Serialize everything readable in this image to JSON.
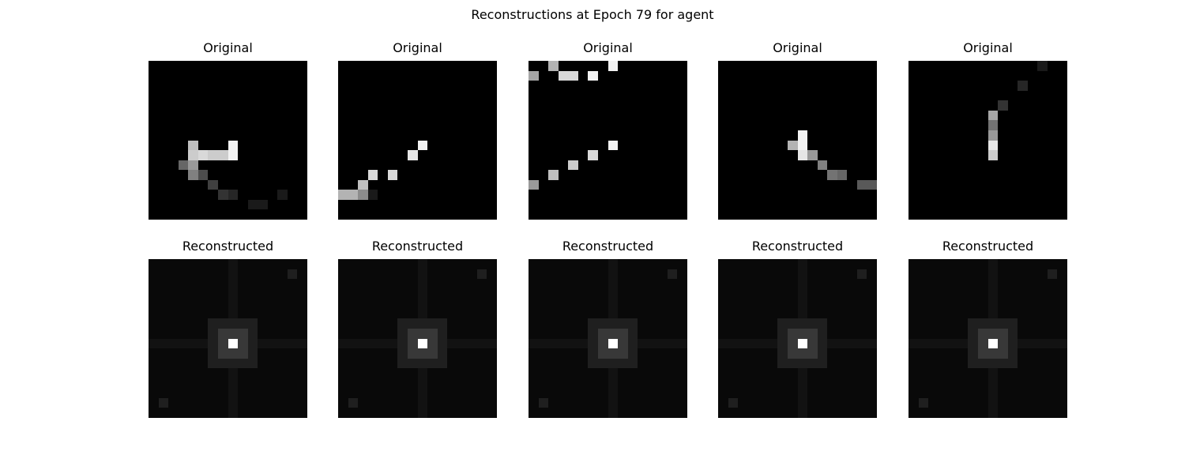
{
  "chart_data": {
    "type": "heatmap",
    "title": "Reconstructions at Epoch 79 for agent",
    "grid_size": 16,
    "value_range": [
      0,
      1
    ],
    "colormap": "gray",
    "rows": [
      {
        "label": "Original",
        "panels": [
          {
            "title": "Original",
            "cells": [
              [
                8,
                8,
                0.95
              ],
              [
                8,
                4,
                0.75
              ],
              [
                9,
                4,
                0.8
              ],
              [
                9,
                5,
                0.85
              ],
              [
                9,
                6,
                0.8
              ],
              [
                9,
                7,
                0.8
              ],
              [
                9,
                8,
                0.95
              ],
              [
                10,
                3,
                0.4
              ],
              [
                10,
                4,
                0.6
              ],
              [
                11,
                4,
                0.5
              ],
              [
                11,
                5,
                0.3
              ],
              [
                12,
                6,
                0.25
              ],
              [
                13,
                7,
                0.2
              ],
              [
                13,
                8,
                0.15
              ],
              [
                13,
                13,
                0.1
              ],
              [
                14,
                10,
                0.1
              ],
              [
                14,
                11,
                0.1
              ]
            ]
          },
          {
            "title": "Original",
            "cells": [
              [
                8,
                8,
                0.95
              ],
              [
                9,
                7,
                0.9
              ],
              [
                11,
                3,
                0.85
              ],
              [
                11,
                5,
                0.85
              ],
              [
                12,
                2,
                0.75
              ],
              [
                13,
                0,
                0.7
              ],
              [
                13,
                1,
                0.7
              ],
              [
                13,
                2,
                0.55
              ],
              [
                13,
                3,
                0.1
              ]
            ]
          },
          {
            "title": "Original",
            "cells": [
              [
                0,
                2,
                0.7
              ],
              [
                0,
                8,
                0.95
              ],
              [
                1,
                0,
                0.65
              ],
              [
                1,
                3,
                0.85
              ],
              [
                1,
                4,
                0.85
              ],
              [
                1,
                6,
                0.95
              ],
              [
                8,
                8,
                0.95
              ],
              [
                9,
                6,
                0.85
              ],
              [
                10,
                4,
                0.8
              ],
              [
                11,
                2,
                0.75
              ],
              [
                12,
                0,
                0.6
              ]
            ]
          },
          {
            "title": "Original",
            "cells": [
              [
                7,
                8,
                0.95
              ],
              [
                8,
                7,
                0.7
              ],
              [
                8,
                8,
                0.95
              ],
              [
                9,
                8,
                0.9
              ],
              [
                9,
                9,
                0.6
              ],
              [
                10,
                10,
                0.5
              ],
              [
                11,
                11,
                0.45
              ],
              [
                11,
                12,
                0.4
              ],
              [
                12,
                14,
                0.35
              ],
              [
                12,
                15,
                0.35
              ]
            ]
          },
          {
            "title": "Original",
            "cells": [
              [
                0,
                13,
                0.1
              ],
              [
                2,
                11,
                0.15
              ],
              [
                4,
                9,
                0.2
              ],
              [
                5,
                8,
                0.65
              ],
              [
                6,
                8,
                0.45
              ],
              [
                7,
                8,
                0.6
              ],
              [
                8,
                8,
                0.9
              ],
              [
                9,
                8,
                0.8
              ]
            ]
          }
        ]
      },
      {
        "label": "Reconstructed",
        "panels": [
          {
            "title": "Reconstructed"
          },
          {
            "title": "Reconstructed"
          },
          {
            "title": "Reconstructed"
          },
          {
            "title": "Reconstructed"
          },
          {
            "title": "Reconstructed"
          }
        ],
        "recon_pattern": {
          "peak": [
            8,
            8,
            1.0
          ],
          "ring1": 0.22,
          "ring2": 0.12,
          "cross": 0.07,
          "background": 0.035,
          "corner_spots": [
            [
              1,
              14,
              0.12
            ],
            [
              14,
              1,
              0.12
            ]
          ]
        }
      }
    ]
  }
}
